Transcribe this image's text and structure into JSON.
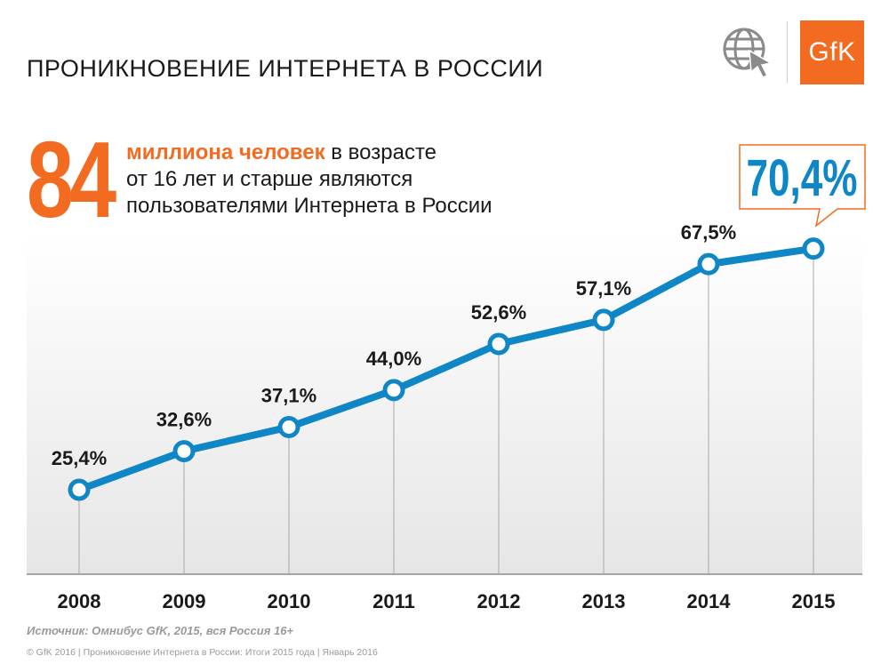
{
  "page": {
    "title": "ПРОНИКНОВЕНИЕ ИНТЕРНЕТА В РОССИИ",
    "logo_text": "GfK",
    "accent_color": "#f36a21",
    "line_color": "#0f86c6"
  },
  "headline": {
    "big_number": "84",
    "highlight": "миллиона человек",
    "line1_rest": " в возрасте",
    "line2": "от 16 лет и старше являются",
    "line3": "пользователями Интернета в России"
  },
  "callout": {
    "value": "70,4%"
  },
  "chart_data": {
    "type": "line",
    "title": "",
    "xlabel": "",
    "ylabel": "",
    "x": [
      "2008",
      "2009",
      "2010",
      "2011",
      "2012",
      "2013",
      "2014",
      "2015"
    ],
    "values": [
      25.4,
      32.6,
      37.1,
      44.0,
      52.6,
      57.1,
      67.5,
      70.4
    ],
    "labels": [
      "25,4%",
      "32,6%",
      "37,1%",
      "44,0%",
      "52,6%",
      "57,1%",
      "67,5%",
      "70,4%"
    ],
    "ylim": [
      0,
      80
    ],
    "grid": false,
    "legend": "none"
  },
  "source": "Источник: Омнибус GfK, 2015, вся Россия 16+",
  "footer": "© GfK 2016 | Проникновение Интернета в России: Итоги 2015 года | Январь 2016"
}
